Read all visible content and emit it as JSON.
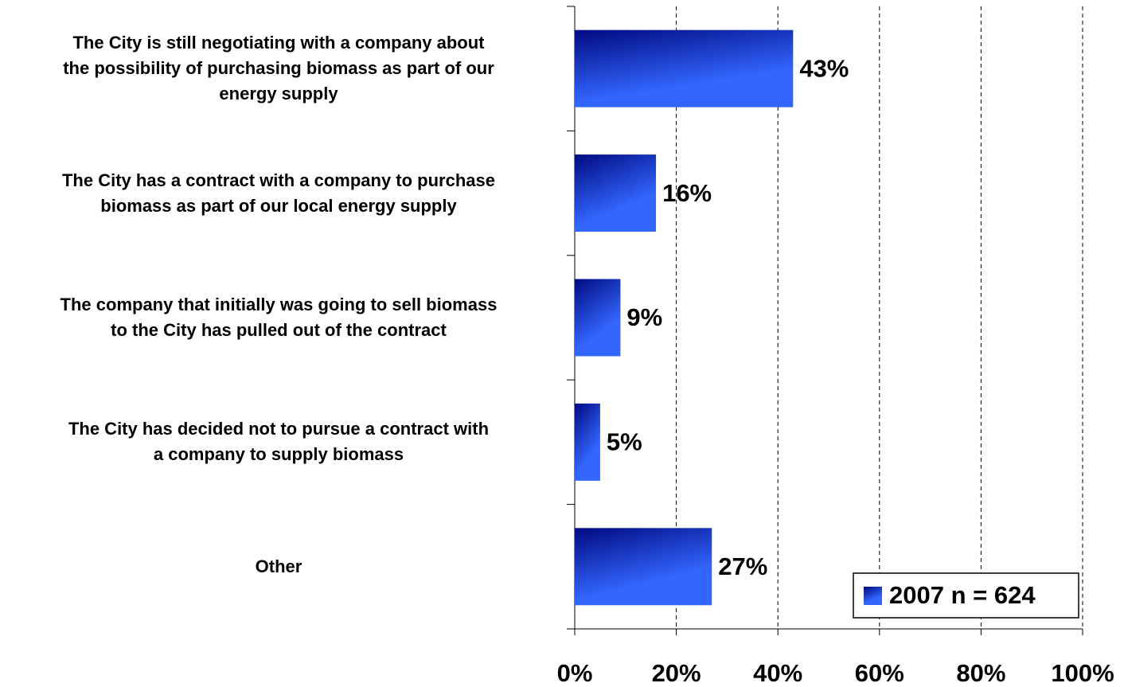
{
  "chart_data": {
    "type": "hbar",
    "categories": [
      "The City is still negotiating with a company about\nthe possibility of purchasing biomass as part of our\nenergy supply",
      "The City has a contract with a company to purchase\nbiomass as part of our local energy supply",
      "The company that initially was going to sell biomass\nto the City has pulled out of the contract",
      "The City has decided not to pursue a contract with\na company to supply biomass",
      "Other"
    ],
    "series": [
      {
        "name": "2007 n = 624",
        "color": "#3366ff",
        "values": [
          43,
          16,
          9,
          5,
          27
        ],
        "value_labels": [
          "43%",
          "16%",
          "9%",
          "5%",
          "27%"
        ]
      }
    ],
    "xlim": [
      0,
      100
    ],
    "xticks": [
      {
        "value": 0,
        "label": "0%"
      },
      {
        "value": 20,
        "label": "20%"
      },
      {
        "value": 40,
        "label": "40%"
      },
      {
        "value": 60,
        "label": "60%"
      },
      {
        "value": 80,
        "label": "80%"
      },
      {
        "value": 100,
        "label": "100%"
      }
    ],
    "grid": true,
    "legend": "lower right"
  }
}
